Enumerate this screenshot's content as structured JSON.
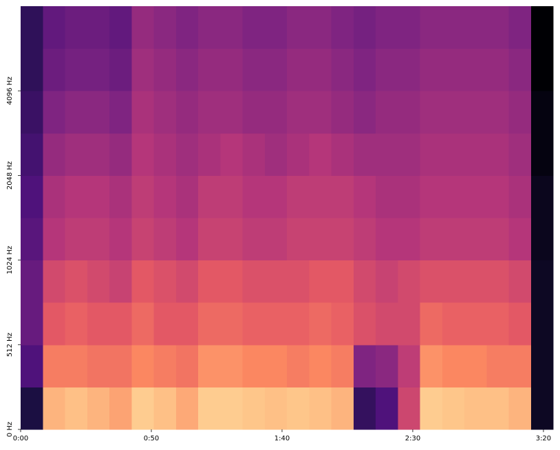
{
  "chart_data": {
    "type": "spectrogram",
    "xticks": [
      {
        "value": 0,
        "label": "0:00"
      },
      {
        "value": 50,
        "label": "0:50"
      },
      {
        "value": 100,
        "label": "1:40"
      },
      {
        "value": 150,
        "label": "2:30"
      },
      {
        "value": 200,
        "label": "3:20"
      }
    ],
    "xlim": [
      0,
      203.7
    ],
    "yticks": [
      {
        "value": 0,
        "label": "0 Hz"
      },
      {
        "value": 512,
        "label": "512 Hz"
      },
      {
        "value": 1024,
        "label": "1024 Hz"
      },
      {
        "value": 2048,
        "label": "2048 Hz"
      },
      {
        "value": 4096,
        "label": "4096 Hz"
      }
    ],
    "ylim": [
      0,
      8192
    ],
    "yscale": "symlog",
    "linthresh": 512,
    "colormap": "magma",
    "zlim": [
      -80,
      0
    ],
    "z": [
      [
        -70,
        -12,
        -10,
        -12,
        -15,
        -8,
        -10,
        -14,
        -8,
        -8,
        -9,
        -10,
        -9,
        -10,
        -12,
        -65,
        -60,
        -35,
        -8,
        -9,
        -10,
        -10,
        -12,
        -75
      ],
      [
        -60,
        -22,
        -22,
        -24,
        -24,
        -20,
        -22,
        -24,
        -18,
        -18,
        -20,
        -20,
        -22,
        -20,
        -22,
        -50,
        -48,
        -38,
        -18,
        -20,
        -20,
        -22,
        -22,
        -75
      ],
      [
        -55,
        -30,
        -28,
        -30,
        -30,
        -26,
        -30,
        -30,
        -26,
        -26,
        -28,
        -28,
        -28,
        -26,
        -28,
        -32,
        -34,
        -34,
        -26,
        -28,
        -28,
        -28,
        -30,
        -75
      ],
      [
        -55,
        -34,
        -32,
        -34,
        -36,
        -30,
        -32,
        -34,
        -30,
        -30,
        -32,
        -32,
        -32,
        -30,
        -30,
        -34,
        -36,
        -34,
        -32,
        -32,
        -32,
        -32,
        -34,
        -75
      ],
      [
        -58,
        -40,
        -38,
        -38,
        -40,
        -36,
        -38,
        -40,
        -36,
        -36,
        -38,
        -38,
        -36,
        -36,
        -36,
        -38,
        -40,
        -40,
        -38,
        -38,
        -38,
        -38,
        -40,
        -76
      ],
      [
        -60,
        -42,
        -40,
        -40,
        -42,
        -38,
        -40,
        -42,
        -38,
        -38,
        -40,
        -40,
        -38,
        -38,
        -38,
        -40,
        -42,
        -42,
        -40,
        -40,
        -40,
        -40,
        -42,
        -76
      ],
      [
        -62,
        -46,
        -44,
        -44,
        -46,
        -40,
        -42,
        -44,
        -42,
        -40,
        -42,
        -44,
        -42,
        -40,
        -42,
        -44,
        -44,
        -44,
        -42,
        -42,
        -42,
        -42,
        -44,
        -78
      ],
      [
        -64,
        -50,
        -48,
        -48,
        -50,
        -42,
        -44,
        -46,
        -44,
        -44,
        -46,
        -46,
        -44,
        -44,
        -46,
        -48,
        -46,
        -46,
        -44,
        -44,
        -44,
        -44,
        -46,
        -78
      ],
      [
        -66,
        -54,
        -52,
        -52,
        -54,
        -44,
        -46,
        -48,
        -46,
        -46,
        -48,
        -48,
        -46,
        -46,
        -48,
        -50,
        -48,
        -48,
        -46,
        -46,
        -46,
        -46,
        -48,
        -80
      ],
      [
        -66,
        -56,
        -54,
        -54,
        -56,
        -46,
        -48,
        -50,
        -48,
        -48,
        -50,
        -50,
        -48,
        -48,
        -50,
        -52,
        -50,
        -50,
        -48,
        -48,
        -48,
        -48,
        -50,
        -80
      ]
    ]
  }
}
